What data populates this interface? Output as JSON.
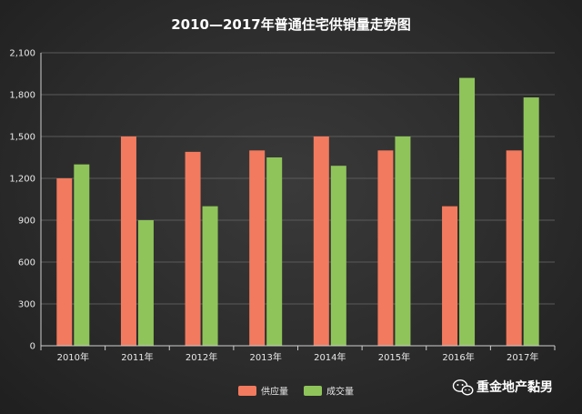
{
  "chart_data": {
    "type": "bar",
    "title": "2010—2017年普通住宅供销量走势图",
    "xlabel": "",
    "ylabel": "",
    "categories": [
      "2010年",
      "2011年",
      "2012年",
      "2013年",
      "2014年",
      "2015年",
      "2016年",
      "2017年"
    ],
    "series": [
      {
        "name": "供应量",
        "color": "#f27a5e",
        "values": [
          1200,
          1500,
          1390,
          1400,
          1500,
          1400,
          1000,
          1400
        ]
      },
      {
        "name": "成交量",
        "color": "#8fc45a",
        "values": [
          1300,
          900,
          1000,
          1350,
          1290,
          1500,
          1920,
          1780
        ]
      }
    ],
    "ylim": [
      0,
      2100
    ],
    "yticks": [
      0,
      300,
      600,
      900,
      1200,
      1500,
      1800,
      2100
    ],
    "ytick_labels": [
      "0",
      "300",
      "600",
      "900",
      "1,200",
      "1,500",
      "1,800",
      "2,100"
    ],
    "grid": true,
    "legend_position": "bottom-center",
    "gridline_color": "#5a5a5a"
  },
  "watermark": {
    "text": "重金地产黏男",
    "icon": "wechat-icon"
  }
}
